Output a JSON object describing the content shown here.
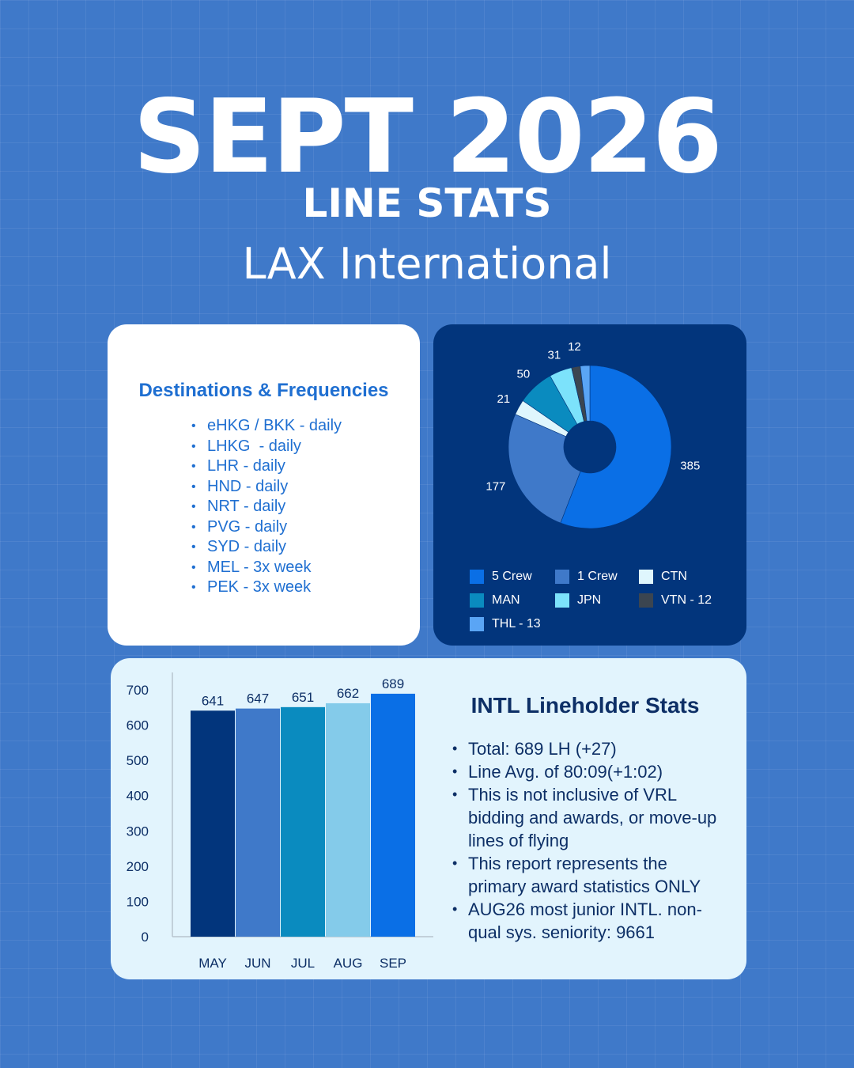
{
  "header": {
    "title": "SEPT 2026",
    "subtitle": "LINE STATS",
    "location": "LAX International"
  },
  "destinations": {
    "title": "Destinations & Frequencies",
    "items": [
      "eHKG / BKK - daily",
      "LHKG  - daily",
      "LHR - daily",
      "HND - daily",
      "NRT - daily",
      "PVG - daily",
      "SYD - daily",
      "MEL - 3x week",
      "PEK - 3x week"
    ]
  },
  "stats": {
    "title": "INTL Lineholder Stats",
    "items": [
      "Total: 689 LH (+27)",
      "Line Avg. of 80:09(+1:02)",
      "This is not inclusive of VRL bidding and awards, or move-up lines of flying",
      "This report represents the primary award statistics ONLY",
      "AUG26 most junior INTL. non-qual sys. seniority: 9661"
    ]
  },
  "chart_data": [
    {
      "type": "pie",
      "donut": true,
      "labels": [
        "5 Crew",
        "1 Crew",
        "CTN",
        "MAN",
        "JPN",
        "VTN - 12",
        "THL - 13"
      ],
      "values": [
        385,
        177,
        21,
        50,
        31,
        12,
        13
      ],
      "data_labels": [
        "385",
        "177",
        "21",
        "50",
        "31",
        "12",
        ""
      ],
      "colors": [
        "#0a6fe6",
        "#3f79c9",
        "#dff6fd",
        "#0a8bbf",
        "#7ce2fb",
        "#3b4550",
        "#5aa5f5"
      ],
      "legend": "bottom"
    },
    {
      "type": "bar",
      "categories": [
        "MAY",
        "JUN",
        "JUL",
        "AUG",
        "SEP"
      ],
      "values": [
        641,
        647,
        651,
        662,
        689
      ],
      "colors": [
        "#02357c",
        "#3f79c9",
        "#0a8bbf",
        "#84cbea",
        "#0a6fe6"
      ],
      "ylim": [
        0,
        700
      ],
      "yticks": [
        "0",
        "100",
        "200",
        "300",
        "400",
        "500",
        "600",
        "700"
      ]
    }
  ]
}
